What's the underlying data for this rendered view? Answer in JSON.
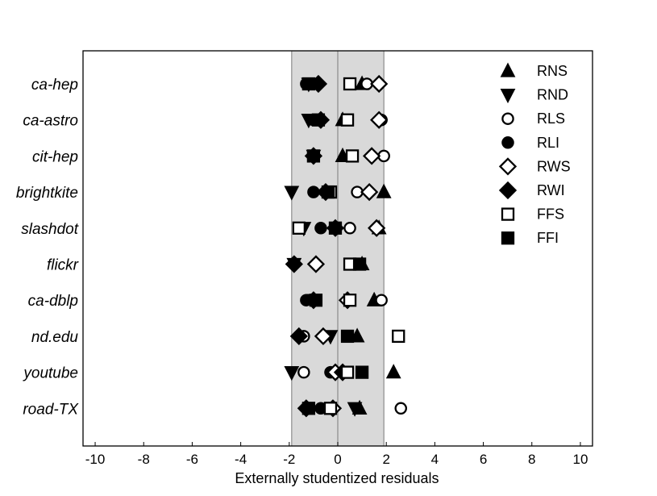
{
  "chart_data": {
    "type": "scatter",
    "xlabel": "Externally studentized residuals",
    "xlim": [
      -10.5,
      10.5
    ],
    "xticks": [
      -10,
      -8,
      -6,
      -4,
      -2,
      0,
      2,
      4,
      6,
      8,
      10
    ],
    "shaded_band": [
      -1.9,
      1.9
    ],
    "zero_line": 0,
    "grid": false,
    "legend_position": "top-right",
    "categories": [
      "ca-hep",
      "ca-astro",
      "cit-hep",
      "brightkite",
      "slashdot",
      "flickr",
      "ca-dblp",
      "nd.edu",
      "youtube",
      "road-TX"
    ],
    "series": [
      {
        "name": "RNS",
        "marker": "triangle-up",
        "filled": true,
        "values": [
          1.0,
          0.2,
          0.2,
          1.9,
          1.7,
          1.0,
          1.5,
          0.8,
          2.3,
          0.9
        ]
      },
      {
        "name": "RND",
        "marker": "triangle-down",
        "filled": true,
        "values": [
          -1.2,
          -1.2,
          -1.0,
          -1.9,
          -1.4,
          -1.8,
          -1.0,
          -0.3,
          -1.9,
          0.7
        ]
      },
      {
        "name": "RLS",
        "marker": "circle",
        "filled": false,
        "values": [
          1.2,
          1.8,
          1.9,
          0.8,
          0.5,
          0.8,
          1.8,
          -1.4,
          -1.4,
          2.6
        ]
      },
      {
        "name": "RLI",
        "marker": "circle",
        "filled": true,
        "values": [
          -1.3,
          -1.0,
          -1.0,
          -1.0,
          -0.7,
          0.6,
          -1.3,
          -1.6,
          -0.3,
          -0.7
        ]
      },
      {
        "name": "RWS",
        "marker": "diamond",
        "filled": false,
        "values": [
          1.7,
          1.7,
          1.4,
          1.3,
          1.6,
          -0.9,
          0.4,
          -0.6,
          -0.1,
          -0.2
        ]
      },
      {
        "name": "RWI",
        "marker": "diamond",
        "filled": true,
        "values": [
          -0.8,
          -0.7,
          -1.0,
          -0.5,
          -0.1,
          -1.8,
          -1.0,
          -1.6,
          0.2,
          -1.3
        ]
      },
      {
        "name": "FFS",
        "marker": "square",
        "filled": false,
        "values": [
          0.5,
          0.4,
          0.6,
          -0.3,
          -1.6,
          0.5,
          0.5,
          2.5,
          0.4,
          -0.3
        ]
      },
      {
        "name": "FFI",
        "marker": "square",
        "filled": true,
        "values": [
          -1.2,
          -0.8,
          -1.0,
          -0.4,
          -0.1,
          0.9,
          -0.9,
          0.4,
          1.0,
          -1.2
        ]
      }
    ]
  }
}
